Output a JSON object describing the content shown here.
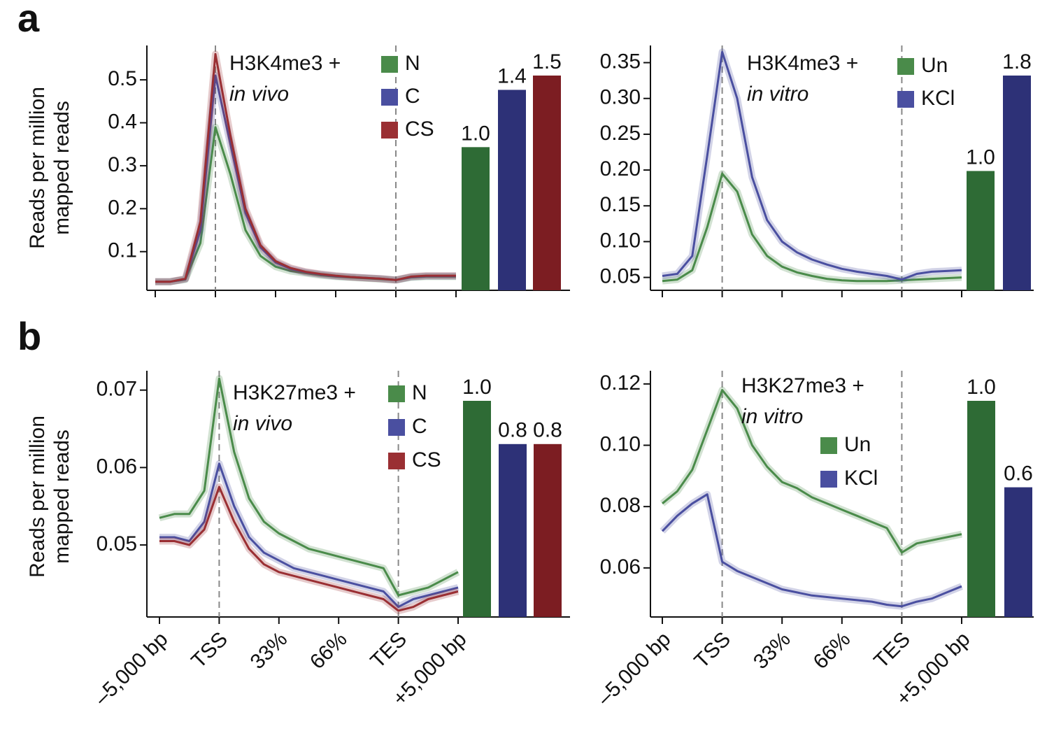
{
  "chart_data": [
    {
      "type": "line",
      "panel": "a",
      "ylabel": [
        "Reads per million",
        "mapped reads"
      ],
      "title": "H3K4me3 +",
      "subtitle": "in vivo",
      "x": [
        0,
        0.25,
        0.5,
        0.75,
        1,
        1.25,
        1.5,
        1.75,
        2,
        2.25,
        2.5,
        2.75,
        3,
        3.25,
        3.5,
        3.75,
        4,
        4.25,
        4.5,
        4.75,
        5
      ],
      "xlim": [
        0,
        5
      ],
      "xticks": [
        0,
        1,
        2,
        3,
        4,
        5
      ],
      "ylim": [
        0.01,
        0.58
      ],
      "yticks": [
        0.1,
        0.2,
        0.3,
        0.4,
        0.5
      ],
      "series": [
        {
          "name": "N",
          "color": "#4a8b4a",
          "values": [
            0.03,
            0.03,
            0.035,
            0.12,
            0.39,
            0.28,
            0.15,
            0.09,
            0.065,
            0.055,
            0.05,
            0.045,
            0.042,
            0.04,
            0.038,
            0.036,
            0.034,
            0.04,
            0.042,
            0.042,
            0.042
          ]
        },
        {
          "name": "C",
          "color": "#4a4fa0",
          "values": [
            0.03,
            0.03,
            0.036,
            0.15,
            0.51,
            0.35,
            0.19,
            0.11,
            0.075,
            0.06,
            0.052,
            0.047,
            0.043,
            0.041,
            0.039,
            0.037,
            0.034,
            0.041,
            0.043,
            0.043,
            0.043
          ]
        },
        {
          "name": "CS",
          "color": "#9a2f33",
          "values": [
            0.03,
            0.03,
            0.037,
            0.17,
            0.56,
            0.37,
            0.2,
            0.115,
            0.078,
            0.062,
            0.053,
            0.048,
            0.044,
            0.041,
            0.039,
            0.037,
            0.034,
            0.042,
            0.044,
            0.044,
            0.044
          ]
        }
      ],
      "bars": {
        "values": [
          1.0,
          1.4,
          1.5
        ],
        "value_labels": [
          "1.0",
          "1.4",
          "1.5"
        ],
        "colors": [
          "#2e6b35",
          "#2d3177",
          "#7c1d22"
        ]
      }
    },
    {
      "type": "line",
      "title": "H3K4me3 +",
      "subtitle": "in vitro",
      "x": [
        0,
        0.25,
        0.5,
        0.75,
        1,
        1.25,
        1.5,
        1.75,
        2,
        2.25,
        2.5,
        2.75,
        3,
        3.25,
        3.5,
        3.75,
        4,
        4.25,
        4.5,
        4.75,
        5
      ],
      "xlim": [
        0,
        5
      ],
      "xticks": [
        0,
        1,
        2,
        3,
        4,
        5
      ],
      "ylim": [
        0.032,
        0.374
      ],
      "yticks": [
        0.05,
        {
          "value": 0.1,
          "label": "0.10"
        },
        0.15,
        {
          "value": 0.2,
          "label": "0.20"
        },
        0.25,
        {
          "value": 0.3,
          "label": "0.30"
        },
        0.35
      ],
      "series": [
        {
          "name": "Un",
          "color": "#4a8b4a",
          "values": [
            0.045,
            0.047,
            0.06,
            0.12,
            0.195,
            0.17,
            0.11,
            0.08,
            0.065,
            0.057,
            0.052,
            0.048,
            0.046,
            0.045,
            0.045,
            0.045,
            0.046,
            0.047,
            0.048,
            0.049,
            0.05
          ]
        },
        {
          "name": "KCl",
          "color": "#4a4fa0",
          "values": [
            0.052,
            0.055,
            0.08,
            0.22,
            0.365,
            0.3,
            0.19,
            0.13,
            0.1,
            0.085,
            0.075,
            0.068,
            0.062,
            0.058,
            0.055,
            0.052,
            0.047,
            0.055,
            0.058,
            0.059,
            0.06
          ]
        }
      ],
      "bars": {
        "values": [
          1.0,
          1.8
        ],
        "value_labels": [
          "1.0",
          "1.8"
        ],
        "colors": [
          "#2e6b35",
          "#2d3177"
        ]
      }
    },
    {
      "type": "line",
      "panel": "b",
      "ylabel": [
        "Reads per million",
        "mapped reads"
      ],
      "title": "H3K27me3 +",
      "subtitle": "in vivo",
      "x": [
        0,
        0.25,
        0.5,
        0.75,
        1,
        1.25,
        1.5,
        1.75,
        2,
        2.25,
        2.5,
        2.75,
        3,
        3.25,
        3.5,
        3.75,
        4,
        4.25,
        4.5,
        4.75,
        5
      ],
      "xlim": [
        0,
        5
      ],
      "xticks": [
        {
          "value": 0,
          "label": "–5,000 bp"
        },
        {
          "value": 1,
          "label": "TSS"
        },
        {
          "value": 2,
          "label": "33%"
        },
        {
          "value": 3,
          "label": "66%"
        },
        {
          "value": 4,
          "label": "TES"
        },
        {
          "value": 5,
          "label": "+5,000 bp"
        }
      ],
      "ylim": [
        0.0407,
        0.0725
      ],
      "yticks": [
        0.05,
        0.06,
        0.07
      ],
      "series": [
        {
          "name": "N",
          "color": "#4a8b4a",
          "values": [
            0.0535,
            0.054,
            0.054,
            0.057,
            0.0715,
            0.062,
            0.056,
            0.053,
            0.0515,
            0.0505,
            0.0495,
            0.049,
            0.0485,
            0.048,
            0.0475,
            0.047,
            0.0435,
            0.044,
            0.0445,
            0.0455,
            0.0465
          ]
        },
        {
          "name": "C",
          "color": "#4a4fa0",
          "values": [
            0.051,
            0.051,
            0.0505,
            0.053,
            0.0605,
            0.055,
            0.051,
            0.049,
            0.048,
            0.047,
            0.0465,
            0.046,
            0.0455,
            0.045,
            0.0445,
            0.044,
            0.042,
            0.043,
            0.0435,
            0.044,
            0.0445
          ]
        },
        {
          "name": "CS",
          "color": "#9a2f33",
          "values": [
            0.0505,
            0.0505,
            0.05,
            0.052,
            0.0575,
            0.053,
            0.0495,
            0.0475,
            0.0465,
            0.046,
            0.0455,
            0.045,
            0.0445,
            0.044,
            0.0435,
            0.043,
            0.0415,
            0.042,
            0.043,
            0.0435,
            0.044
          ]
        }
      ],
      "bars": {
        "values": [
          1.0,
          0.8,
          0.8
        ],
        "value_labels": [
          "1.0",
          "0.8",
          "0.8"
        ],
        "colors": [
          "#2e6b35",
          "#2d3177",
          "#7c1d22"
        ]
      }
    },
    {
      "type": "line",
      "title": "H3K27me3 +",
      "subtitle": "in vitro",
      "x": [
        0,
        0.25,
        0.5,
        0.75,
        1,
        1.25,
        1.5,
        1.75,
        2,
        2.25,
        2.5,
        2.75,
        3,
        3.25,
        3.5,
        3.75,
        4,
        4.25,
        4.5,
        4.75,
        5
      ],
      "xlim": [
        0,
        5
      ],
      "xticks": [
        {
          "value": 0,
          "label": "–5,000 bp"
        },
        {
          "value": 1,
          "label": "TSS"
        },
        {
          "value": 2,
          "label": "33%"
        },
        {
          "value": 3,
          "label": "66%"
        },
        {
          "value": 4,
          "label": "TES"
        },
        {
          "value": 5,
          "label": "+5,000 bp"
        }
      ],
      "ylim": [
        0.044,
        0.1243
      ],
      "yticks": [
        0.06,
        0.08,
        {
          "value": 0.1,
          "label": "0.10"
        },
        0.12
      ],
      "series": [
        {
          "name": "Un",
          "color": "#4a8b4a",
          "values": [
            0.081,
            0.085,
            0.092,
            0.105,
            0.118,
            0.112,
            0.1,
            0.093,
            0.088,
            0.086,
            0.083,
            0.081,
            0.079,
            0.077,
            0.075,
            0.073,
            0.065,
            0.068,
            0.069,
            0.07,
            0.071
          ]
        },
        {
          "name": "KCl",
          "color": "#4a4fa0",
          "values": [
            0.072,
            0.077,
            0.081,
            0.084,
            0.062,
            0.059,
            0.057,
            0.055,
            0.053,
            0.052,
            0.051,
            0.0505,
            0.05,
            0.0495,
            0.049,
            0.048,
            0.0475,
            0.049,
            0.05,
            0.052,
            0.054
          ]
        }
      ],
      "bars": {
        "values": [
          1.0,
          0.6
        ],
        "value_labels": [
          "1.0",
          "0.6"
        ],
        "colors": [
          "#2e6b35",
          "#2d3177"
        ]
      }
    }
  ]
}
